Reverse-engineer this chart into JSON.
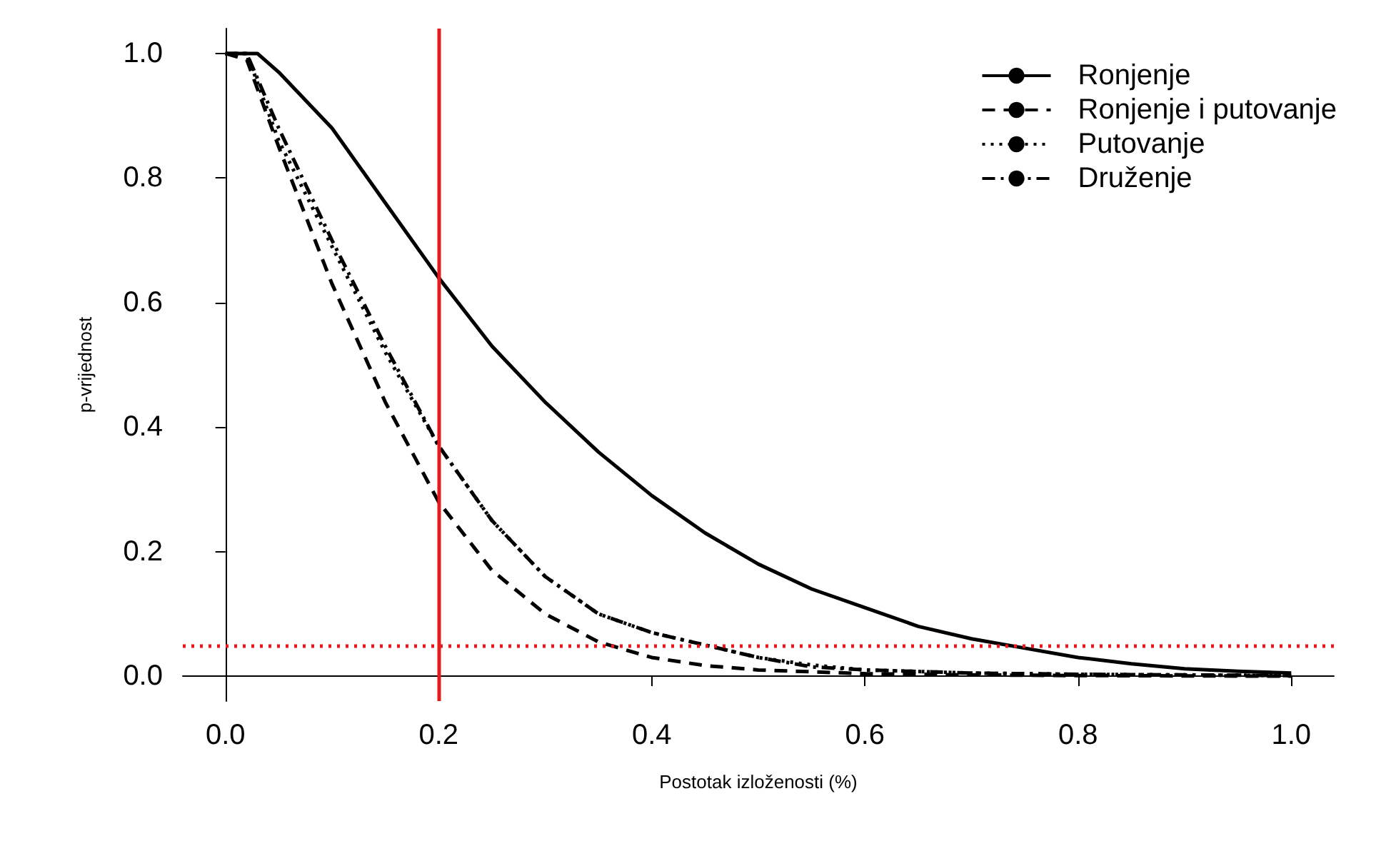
{
  "chart_data": {
    "type": "line",
    "xlabel": "Postotak izloženosti (%)",
    "ylabel": "p-vrijednost",
    "xlim": [
      -0.04,
      1.04
    ],
    "ylim": [
      -0.04,
      1.04
    ],
    "xticks": [
      {
        "value": 0,
        "label": "0.0"
      },
      0.2,
      0.4,
      0.6,
      0.8,
      {
        "value": 1,
        "label": "1.0"
      }
    ],
    "yticks": [
      {
        "value": 0,
        "label": "0.0"
      },
      0.2,
      0.4,
      0.6,
      0.8,
      {
        "value": 1,
        "label": "1.0"
      }
    ],
    "grid": false,
    "legend": "top right",
    "marker": "none",
    "ref_lines": [
      {
        "axis": "x",
        "value": 0.2,
        "color": "#e41a1c",
        "line_style": "solid"
      },
      {
        "axis": "y",
        "value": 0.05,
        "color": "#e41a1c",
        "line_style": "dotted"
      }
    ],
    "series": [
      {
        "name": "Ronjenje",
        "color": "#000000",
        "line_style": "solid",
        "x": [
          0,
          0.03,
          0.05,
          0.1,
          0.15,
          0.2,
          0.25,
          0.3,
          0.35,
          0.4,
          0.45,
          0.5,
          0.55,
          0.6,
          0.65,
          0.7,
          0.75,
          0.8,
          0.85,
          0.9,
          0.95,
          1.0
        ],
        "values": [
          1,
          1,
          0.97,
          0.88,
          0.76,
          0.64,
          0.53,
          0.44,
          0.36,
          0.29,
          0.23,
          0.18,
          0.14,
          0.11,
          0.08,
          0.06,
          0.045,
          0.03,
          0.02,
          0.012,
          0.008,
          0.005
        ]
      },
      {
        "name": "Ronjenje i putovanje",
        "color": "#000000",
        "line_style": "dashed",
        "x": [
          0,
          0.02,
          0.05,
          0.1,
          0.15,
          0.2,
          0.25,
          0.3,
          0.35,
          0.4,
          0.45,
          0.5,
          0.6,
          0.7,
          0.8,
          1.0
        ],
        "values": [
          1,
          0.99,
          0.85,
          0.63,
          0.44,
          0.28,
          0.17,
          0.1,
          0.055,
          0.03,
          0.017,
          0.01,
          0.004,
          0.002,
          0.001,
          0
        ]
      },
      {
        "name": "Putovanje",
        "color": "#000000",
        "line_style": "dotted",
        "x": [
          0,
          0.02,
          0.05,
          0.1,
          0.15,
          0.2,
          0.25,
          0.3,
          0.35,
          0.4,
          0.45,
          0.5,
          0.55,
          0.6,
          0.7,
          0.8,
          0.9,
          1.0
        ],
        "values": [
          1,
          1,
          0.86,
          0.69,
          0.52,
          0.37,
          0.25,
          0.16,
          0.1,
          0.07,
          0.05,
          0.03,
          0.018,
          0.01,
          0.005,
          0.003,
          0.002,
          0.001
        ]
      },
      {
        "name": "Druženje",
        "color": "#000000",
        "line_style": "dashdot",
        "x": [
          0,
          0.02,
          0.05,
          0.1,
          0.15,
          0.2,
          0.25,
          0.3,
          0.35,
          0.4,
          0.45,
          0.5,
          0.55,
          0.6,
          0.7,
          0.8,
          0.9,
          1.0
        ],
        "values": [
          1,
          1,
          0.88,
          0.7,
          0.53,
          0.37,
          0.25,
          0.16,
          0.1,
          0.07,
          0.05,
          0.03,
          0.015,
          0.01,
          0.005,
          0.003,
          0.002,
          0.001
        ]
      }
    ]
  }
}
